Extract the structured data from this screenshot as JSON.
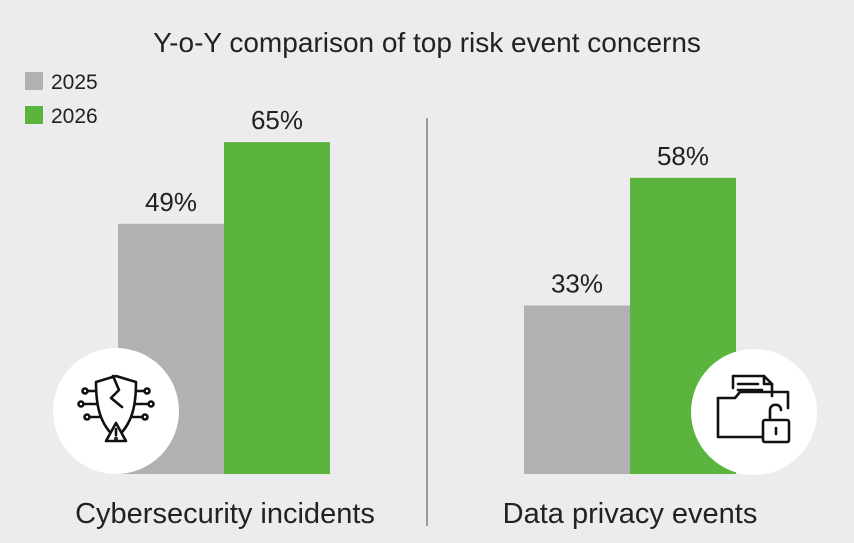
{
  "chart_data": {
    "type": "bar",
    "title": "Y-o-Y comparison of top risk event concerns",
    "categories": [
      "Cybersecurity incidents",
      "Data privacy events"
    ],
    "series": [
      {
        "name": "2025",
        "values": [
          49,
          33
        ],
        "labels": [
          "49%",
          "33%"
        ],
        "color": "#b1b1b4"
      },
      {
        "name": "2026",
        "values": [
          65,
          58
        ],
        "labels": [
          "65%",
          "58%"
        ],
        "color": "#5bb43d"
      }
    ],
    "unit": "%",
    "ylim": [
      0,
      85
    ],
    "grid": false,
    "legend_position": "top-left",
    "icons": [
      "cybersecurity-shield-icon",
      "data-privacy-folder-lock-icon"
    ]
  }
}
